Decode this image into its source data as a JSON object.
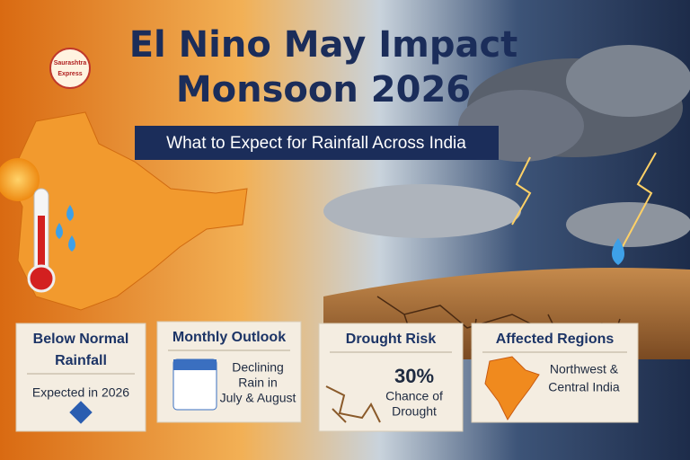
{
  "logo": {
    "lines": [
      "Saurashtra",
      "Express"
    ]
  },
  "header": {
    "title_lines": [
      "El Nino May Impact",
      "Monsoon 2026"
    ],
    "subtitle": "What to Expect for Rainfall Across India"
  },
  "cards": [
    {
      "title_lines": [
        "Below Normal",
        "Rainfall"
      ],
      "body_lines": [
        "Expected in 2026"
      ]
    },
    {
      "title_lines": [
        "Monthly Outlook"
      ],
      "body_lines": [
        "Declining",
        "Rain in",
        "July & August"
      ]
    },
    {
      "title_lines": [
        "Drought Risk"
      ],
      "stat": "30%",
      "body_lines": [
        "Chance of",
        "Drought"
      ]
    },
    {
      "title_lines": [
        "Affected Regions"
      ],
      "body_lines": [
        "Northwest &",
        "Central India"
      ]
    }
  ]
}
